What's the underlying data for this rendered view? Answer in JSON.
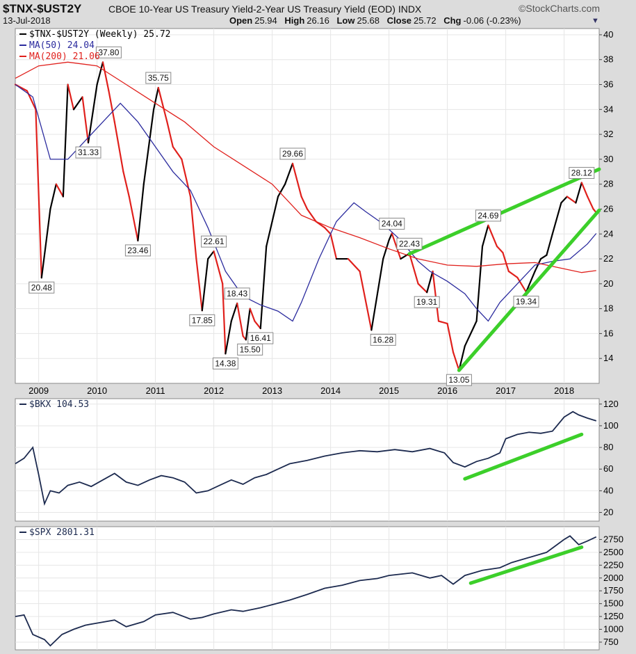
{
  "header": {
    "symbol": "$TNX-$UST2Y",
    "title": "CBOE 10-Year US Treasury Yield-2-Year US Treasury Yield (EOD)",
    "exchange": "INDX",
    "brand": "©StockCharts.com",
    "date": "13-Jul-2018",
    "open_label": "Open",
    "open": "25.94",
    "high_label": "High",
    "high": "26.16",
    "low_label": "Low",
    "low": "25.68",
    "close_label": "Close",
    "close": "25.72",
    "chg_label": "Chg",
    "chg": "-0.06 (-0.23%)",
    "dropdown_icon": "triangle-down-icon"
  },
  "colors": {
    "price": "#000000",
    "ma50": "#2b2b9e",
    "ma200": "#e0201c",
    "index": "#1c2a4f",
    "trend": "#3ccf2a",
    "background": "#ffffff",
    "frame": "#dcdcdc"
  },
  "chart_data": [
    {
      "type": "line",
      "panel": "main",
      "legend": [
        {
          "icon": "legend-line-icon",
          "text": "$TNX-$UST2Y (Weekly) 25.72",
          "color": "#000000"
        },
        {
          "icon": "legend-line-icon",
          "text": "MA(50) 24.04",
          "color": "#2b2b9e"
        },
        {
          "icon": "legend-line-icon",
          "text": "MA(200) 21.06",
          "color": "#e0201c"
        }
      ],
      "ylim": [
        12,
        40.5
      ],
      "yticks": [
        14,
        16,
        18,
        20,
        22,
        24,
        26,
        28,
        30,
        32,
        34,
        36,
        38,
        40
      ],
      "xlim": [
        2008.6,
        2018.6
      ],
      "xticks": [
        2009,
        2010,
        2011,
        2012,
        2013,
        2014,
        2015,
        2016,
        2017,
        2018
      ],
      "series": [
        {
          "name": "$TNX-$UST2Y",
          "color": "#000000",
          "style": "updown",
          "x": [
            2008.6,
            2008.8,
            2008.95,
            2009.05,
            2009.2,
            2009.3,
            2009.42,
            2009.5,
            2009.6,
            2009.75,
            2009.85,
            2010.0,
            2010.1,
            2010.2,
            2010.3,
            2010.45,
            2010.55,
            2010.7,
            2010.8,
            2010.97,
            2011.05,
            2011.2,
            2011.3,
            2011.45,
            2011.6,
            2011.7,
            2011.8,
            2011.9,
            2012.0,
            2012.15,
            2012.2,
            2012.3,
            2012.4,
            2012.5,
            2012.55,
            2012.62,
            2012.7,
            2012.8,
            2012.9,
            2013.0,
            2013.1,
            2013.22,
            2013.35,
            2013.5,
            2013.6,
            2013.75,
            2013.9,
            2014.0,
            2014.1,
            2014.3,
            2014.5,
            2014.7,
            2014.9,
            2015.0,
            2015.05,
            2015.2,
            2015.35,
            2015.5,
            2015.65,
            2015.75,
            2015.85,
            2016.0,
            2016.1,
            2016.2,
            2016.3,
            2016.45,
            2016.5,
            2016.6,
            2016.7,
            2016.85,
            2016.95,
            2017.05,
            2017.2,
            2017.35,
            2017.5,
            2017.6,
            2017.7,
            2017.8,
            2017.95,
            2018.05,
            2018.2,
            2018.3,
            2018.4,
            2018.5,
            2018.55
          ],
          "y": [
            36,
            35.5,
            34,
            20.48,
            26,
            28,
            27,
            36,
            34,
            35,
            31.33,
            36,
            37.8,
            35.5,
            33,
            29,
            27,
            23.46,
            28,
            34,
            35.75,
            33,
            31,
            30,
            27,
            22,
            17.85,
            22,
            22.61,
            20,
            14.38,
            17,
            18.43,
            15.8,
            15.5,
            18,
            17,
            16.41,
            23,
            25,
            27,
            28,
            29.66,
            27,
            26,
            25,
            24.5,
            24,
            22,
            22,
            21,
            16.28,
            22,
            23.5,
            24.04,
            22,
            22.43,
            20,
            19.31,
            21,
            17,
            16.8,
            14.5,
            13.05,
            15,
            16.5,
            17,
            23,
            24.69,
            23,
            22.5,
            21,
            20.5,
            19.34,
            21,
            22,
            22.3,
            24,
            26.5,
            27,
            26.5,
            28.12,
            27,
            26,
            25.72
          ]
        },
        {
          "name": "MA(50)",
          "color": "#2b2b9e",
          "style": "line",
          "x": [
            2008.6,
            2008.9,
            2009.2,
            2009.5,
            2009.8,
            2010.1,
            2010.4,
            2010.7,
            2011.0,
            2011.3,
            2011.6,
            2011.9,
            2012.2,
            2012.5,
            2012.8,
            2013.1,
            2013.35,
            2013.5,
            2013.8,
            2014.1,
            2014.4,
            2014.6,
            2014.9,
            2015.2,
            2015.5,
            2015.7,
            2016.0,
            2016.3,
            2016.5,
            2016.7,
            2016.9,
            2017.2,
            2017.5,
            2017.8,
            2018.1,
            2018.4,
            2018.55
          ],
          "y": [
            36,
            35,
            30,
            30,
            31.5,
            33,
            34.5,
            33,
            31,
            29,
            27.5,
            24.5,
            21,
            19,
            18.3,
            17.8,
            17,
            18.5,
            22,
            25,
            26.5,
            25.8,
            24.8,
            23.5,
            21.8,
            21,
            20.2,
            19.2,
            18,
            17,
            18.5,
            20,
            21.5,
            21.8,
            22,
            23.2,
            24.04
          ]
        },
        {
          "name": "MA(200)",
          "color": "#e0201c",
          "style": "line",
          "x": [
            2008.6,
            2009.0,
            2009.5,
            2010.0,
            2010.5,
            2011.0,
            2011.5,
            2012.0,
            2012.5,
            2013.0,
            2013.5,
            2014.0,
            2014.5,
            2015.0,
            2015.5,
            2016.0,
            2016.5,
            2017.0,
            2017.5,
            2018.0,
            2018.3,
            2018.55
          ],
          "y": [
            36.5,
            37.5,
            37.8,
            37.5,
            36,
            34.5,
            33,
            31,
            29.5,
            28,
            25.5,
            24.5,
            23.7,
            22.8,
            22,
            21.5,
            21.4,
            21.6,
            21.7,
            21.2,
            20.9,
            21.06
          ]
        }
      ],
      "annotations": [
        {
          "text": "20.48",
          "x": 2009.05,
          "y": 20.48,
          "pos": "below"
        },
        {
          "text": "37.80",
          "x": 2010.2,
          "y": 37.8,
          "pos": "above"
        },
        {
          "text": "31.33",
          "x": 2009.85,
          "y": 31.33,
          "pos": "below"
        },
        {
          "text": "35.75",
          "x": 2011.05,
          "y": 35.75,
          "pos": "above"
        },
        {
          "text": "23.46",
          "x": 2010.7,
          "y": 23.46,
          "pos": "below"
        },
        {
          "text": "22.61",
          "x": 2012.0,
          "y": 22.61,
          "pos": "above"
        },
        {
          "text": "17.85",
          "x": 2011.8,
          "y": 17.85,
          "pos": "below"
        },
        {
          "text": "18.43",
          "x": 2012.4,
          "y": 18.43,
          "pos": "above"
        },
        {
          "text": "14.38",
          "x": 2012.2,
          "y": 14.38,
          "pos": "below"
        },
        {
          "text": "15.50",
          "x": 2012.62,
          "y": 15.5,
          "pos": "below"
        },
        {
          "text": "16.41",
          "x": 2012.8,
          "y": 16.41,
          "pos": "below"
        },
        {
          "text": "29.66",
          "x": 2013.35,
          "y": 29.66,
          "pos": "above"
        },
        {
          "text": "16.28",
          "x": 2014.9,
          "y": 16.28,
          "pos": "below"
        },
        {
          "text": "24.04",
          "x": 2015.05,
          "y": 24.04,
          "pos": "above"
        },
        {
          "text": "22.43",
          "x": 2015.35,
          "y": 22.43,
          "pos": "above"
        },
        {
          "text": "19.31",
          "x": 2015.65,
          "y": 19.31,
          "pos": "below"
        },
        {
          "text": "13.05",
          "x": 2016.2,
          "y": 13.05,
          "pos": "below"
        },
        {
          "text": "24.69",
          "x": 2016.7,
          "y": 24.69,
          "pos": "above"
        },
        {
          "text": "19.34",
          "x": 2017.35,
          "y": 19.34,
          "pos": "below"
        },
        {
          "text": "28.12",
          "x": 2018.3,
          "y": 28.12,
          "pos": "above"
        }
      ],
      "trendlines": [
        {
          "x": [
            2015.35,
            2018.6
          ],
          "y": [
            22.4,
            29.2
          ],
          "color": "#3ccf2a"
        },
        {
          "x": [
            2016.2,
            2018.6
          ],
          "y": [
            13.05,
            25.9
          ],
          "color": "#3ccf2a"
        }
      ]
    },
    {
      "type": "line",
      "panel": "bkx",
      "legend": [
        {
          "icon": "legend-line-icon",
          "text": "$BKX 104.53",
          "color": "#1c2a4f"
        }
      ],
      "ylim": [
        12,
        125
      ],
      "yticks": [
        20,
        40,
        60,
        80,
        100,
        120
      ],
      "xlim": [
        2008.6,
        2018.6
      ],
      "series": [
        {
          "name": "$BKX",
          "color": "#1c2a4f",
          "x": [
            2008.6,
            2008.75,
            2008.9,
            2009.0,
            2009.1,
            2009.2,
            2009.35,
            2009.5,
            2009.7,
            2009.9,
            2010.1,
            2010.3,
            2010.5,
            2010.7,
            2010.9,
            2011.1,
            2011.3,
            2011.5,
            2011.7,
            2011.9,
            2012.1,
            2012.3,
            2012.5,
            2012.7,
            2012.9,
            2013.1,
            2013.3,
            2013.6,
            2013.9,
            2014.2,
            2014.5,
            2014.8,
            2015.1,
            2015.4,
            2015.7,
            2015.95,
            2016.1,
            2016.3,
            2016.5,
            2016.7,
            2016.9,
            2017.0,
            2017.2,
            2017.4,
            2017.6,
            2017.8,
            2018.0,
            2018.15,
            2018.25,
            2018.4,
            2018.55
          ],
          "y": [
            65,
            70,
            80,
            55,
            28,
            40,
            38,
            45,
            48,
            44,
            50,
            56,
            48,
            45,
            50,
            54,
            52,
            48,
            38,
            40,
            45,
            50,
            46,
            52,
            55,
            60,
            65,
            68,
            72,
            75,
            77,
            76,
            78,
            76,
            79,
            75,
            66,
            62,
            67,
            70,
            75,
            88,
            92,
            94,
            93,
            95,
            108,
            113,
            110,
            107,
            104.53
          ]
        }
      ],
      "trendlines": [
        {
          "x": [
            2016.3,
            2018.3
          ],
          "y": [
            51,
            92
          ],
          "color": "#3ccf2a"
        }
      ]
    },
    {
      "type": "line",
      "panel": "spx",
      "legend": [
        {
          "icon": "legend-line-icon",
          "text": "$SPX 2801.31",
          "color": "#1c2a4f"
        }
      ],
      "ylim": [
        600,
        3000
      ],
      "yticks": [
        750,
        1000,
        1250,
        1500,
        1750,
        2000,
        2250,
        2500,
        2750
      ],
      "xlim": [
        2008.6,
        2018.6
      ],
      "xticks": [
        2009,
        2010,
        2011,
        2012,
        2013,
        2014,
        2015,
        2016,
        2017,
        2018
      ],
      "series": [
        {
          "name": "$SPX",
          "color": "#1c2a4f",
          "x": [
            2008.6,
            2008.75,
            2008.9,
            2009.1,
            2009.2,
            2009.4,
            2009.6,
            2009.8,
            2010.0,
            2010.3,
            2010.5,
            2010.8,
            2011.0,
            2011.3,
            2011.6,
            2011.8,
            2012.0,
            2012.3,
            2012.5,
            2012.8,
            2013.0,
            2013.3,
            2013.6,
            2013.9,
            2014.2,
            2014.5,
            2014.8,
            2015.0,
            2015.4,
            2015.7,
            2015.9,
            2016.1,
            2016.3,
            2016.6,
            2016.9,
            2017.1,
            2017.4,
            2017.7,
            2018.0,
            2018.1,
            2018.25,
            2018.4,
            2018.55
          ],
          "y": [
            1250,
            1280,
            900,
            800,
            680,
            900,
            1000,
            1080,
            1120,
            1180,
            1050,
            1150,
            1280,
            1330,
            1200,
            1230,
            1300,
            1380,
            1350,
            1420,
            1480,
            1570,
            1680,
            1800,
            1860,
            1950,
            1990,
            2050,
            2100,
            2000,
            2050,
            1880,
            2050,
            2150,
            2200,
            2300,
            2400,
            2500,
            2750,
            2820,
            2650,
            2720,
            2801.31
          ]
        }
      ],
      "trendlines": [
        {
          "x": [
            2016.4,
            2018.3
          ],
          "y": [
            1900,
            2600
          ],
          "color": "#3ccf2a"
        }
      ]
    }
  ]
}
